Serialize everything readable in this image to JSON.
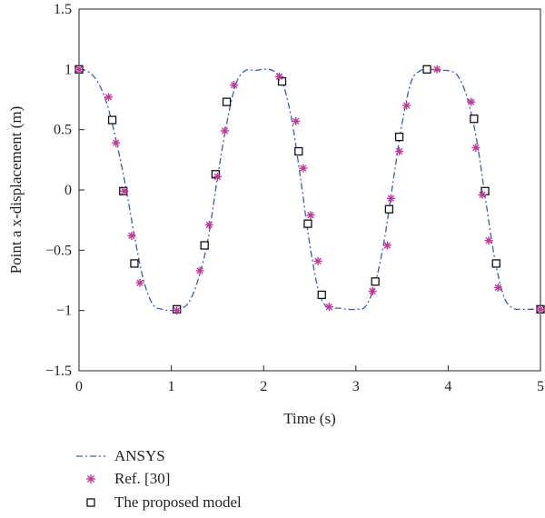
{
  "chart_data": {
    "type": "line",
    "xlabel": "Time (s)",
    "ylabel": "Point a x-displacement (m)",
    "xlim": [
      0,
      5
    ],
    "ylim": [
      -1.5,
      1.5
    ],
    "xticks": [
      "0",
      "1",
      "2",
      "3",
      "4",
      "5"
    ],
    "yticks": [
      "1.5",
      "1",
      "0.5",
      "0",
      "−0.5",
      "−1",
      "−1.5"
    ],
    "grid": false,
    "legend_placement": "bottom-left",
    "colors": {
      "ansys": "#3b5bb8",
      "ref": "#c0389b",
      "model": "#111111"
    },
    "series": [
      {
        "name": "ANSYS",
        "style": "dash-dot line",
        "x": [
          0,
          0.1,
          0.2,
          0.3,
          0.4,
          0.5,
          0.6,
          0.7,
          0.8,
          0.9,
          1.0,
          1.1,
          1.2,
          1.3,
          1.4,
          1.5,
          1.6,
          1.7,
          1.8,
          1.9,
          2.0,
          2.1,
          2.2,
          2.3,
          2.4,
          2.5,
          2.6,
          2.7,
          2.8,
          2.9,
          3.0,
          3.1,
          3.2,
          3.3,
          3.4,
          3.5,
          3.6,
          3.7,
          3.8,
          3.9,
          4.0,
          4.1,
          4.2,
          4.3,
          4.4,
          4.5,
          4.6,
          4.7,
          4.8,
          4.9,
          5.0
        ],
        "y": [
          1.0,
          0.98,
          0.9,
          0.72,
          0.42,
          0.05,
          -0.38,
          -0.75,
          -0.95,
          -0.99,
          -1.0,
          -0.99,
          -0.92,
          -0.72,
          -0.4,
          0.1,
          0.55,
          0.88,
          0.99,
          0.99,
          1.0,
          0.99,
          0.9,
          0.6,
          0.1,
          -0.45,
          -0.85,
          -0.98,
          -0.98,
          -0.99,
          -0.99,
          -0.97,
          -0.8,
          -0.45,
          0.05,
          0.55,
          0.9,
          0.99,
          1.0,
          0.99,
          0.99,
          0.95,
          0.78,
          0.45,
          -0.05,
          -0.55,
          -0.88,
          -0.98,
          -0.99,
          -0.99,
          -0.99
        ]
      },
      {
        "name": "Ref. [30]",
        "style": "asterisk markers",
        "x": [
          0.0,
          0.32,
          0.4,
          0.49,
          0.57,
          0.66,
          1.06,
          1.31,
          1.41,
          1.5,
          1.58,
          1.68,
          2.17,
          2.35,
          2.43,
          2.51,
          2.59,
          2.71,
          3.18,
          3.34,
          3.38,
          3.47,
          3.55,
          3.88,
          4.25,
          4.3,
          4.37,
          4.44,
          4.54,
          5.0
        ],
        "y": [
          1.0,
          0.77,
          0.39,
          -0.01,
          -0.38,
          -0.77,
          -1.0,
          -0.67,
          -0.29,
          0.11,
          0.49,
          0.87,
          0.94,
          0.57,
          0.18,
          -0.21,
          -0.59,
          -0.97,
          -0.84,
          -0.46,
          -0.07,
          0.32,
          0.7,
          1.0,
          0.73,
          0.35,
          -0.04,
          -0.42,
          -0.81,
          -0.99
        ]
      },
      {
        "name": "The proposed model",
        "style": "open square markers",
        "x": [
          0.0,
          0.36,
          0.48,
          0.6,
          1.06,
          1.36,
          1.48,
          1.6,
          2.2,
          2.38,
          2.48,
          2.63,
          3.21,
          3.36,
          3.47,
          3.77,
          4.28,
          4.4,
          4.52,
          5.0
        ],
        "y": [
          1.0,
          0.58,
          -0.01,
          -0.61,
          -0.99,
          -0.46,
          0.13,
          0.73,
          0.9,
          0.32,
          -0.28,
          -0.87,
          -0.76,
          -0.16,
          0.44,
          1.0,
          0.59,
          -0.01,
          -0.61,
          -0.99
        ]
      }
    ]
  }
}
